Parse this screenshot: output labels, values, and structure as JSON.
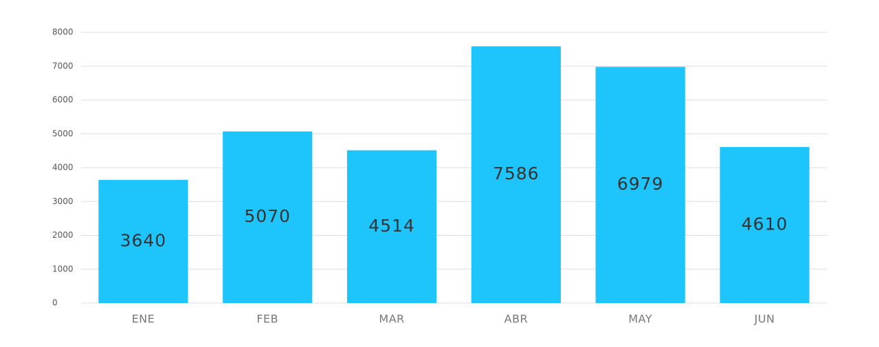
{
  "chart_data": {
    "type": "bar",
    "categories": [
      "ENE",
      "FEB",
      "MAR",
      "ABR",
      "MAY",
      "JUN"
    ],
    "values": [
      3640,
      5070,
      4514,
      7586,
      6979,
      4610
    ],
    "color": "#1ec5fd",
    "ylim": [
      0,
      8000
    ],
    "yticks": [
      0,
      1000,
      2000,
      3000,
      4000,
      5000,
      6000,
      7000,
      8000
    ],
    "grid": true
  }
}
